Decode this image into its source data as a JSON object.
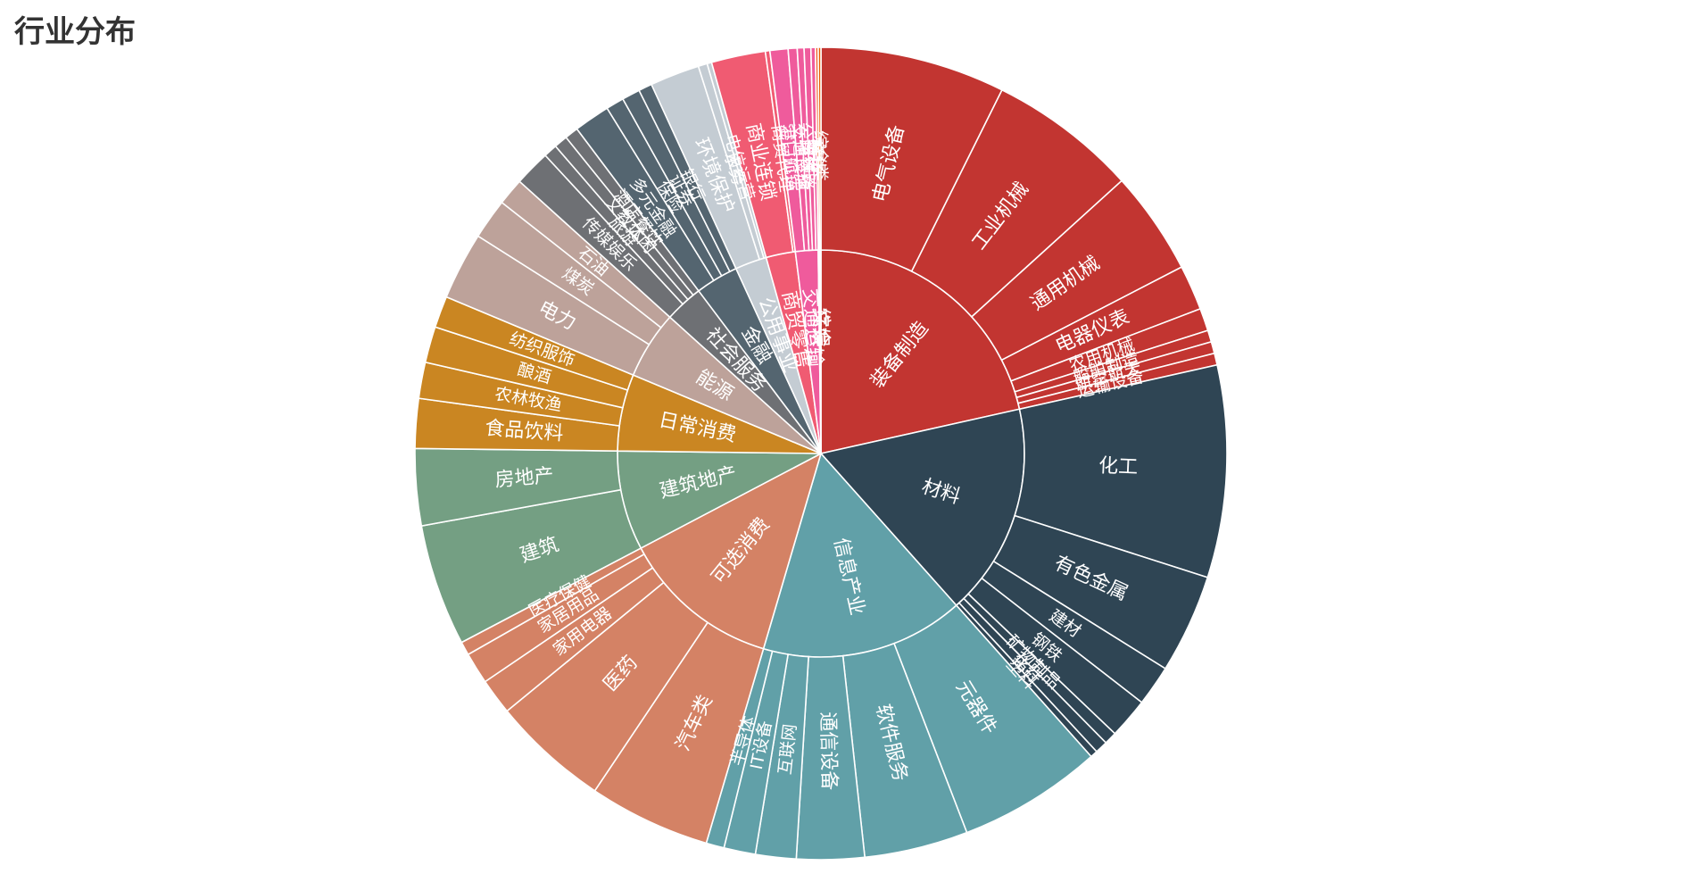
{
  "chart_data": {
    "type": "sunburst",
    "title": "行业分布",
    "start_angle_deg": 90,
    "direction": "clockwise",
    "sectors": [
      {
        "name": "装备制造",
        "color": "#c23531",
        "children": [
          {
            "name": "电气设备",
            "value": 41
          },
          {
            "name": "工业机械",
            "value": 33
          },
          {
            "name": "通用机械",
            "value": 23
          },
          {
            "name": "电器仪表",
            "value": 10
          },
          {
            "name": "农用机械",
            "value": 5
          },
          {
            "name": "船舶制造",
            "value": 2.6
          },
          {
            "name": "航空航天",
            "value": 2.6
          },
          {
            "name": "运输设备",
            "value": 2.6
          }
        ]
      },
      {
        "name": "材料",
        "color": "#2f4554",
        "children": [
          {
            "name": "化工",
            "value": 47
          },
          {
            "name": "有色金属",
            "value": 22
          },
          {
            "name": "建材",
            "value": 9
          },
          {
            "name": "钢铁",
            "value": 9
          },
          {
            "name": "矿物制品",
            "value": 2.8
          },
          {
            "name": "化纤",
            "value": 2.8
          },
          {
            "name": "塑料",
            "value": 1.6
          }
        ]
      },
      {
        "name": "信息产业",
        "color": "#61a0a8",
        "children": [
          {
            "name": "元器件",
            "value": 32
          },
          {
            "name": "软件服务",
            "value": 23
          },
          {
            "name": "通信设备",
            "value": 15
          },
          {
            "name": "互联网",
            "value": 9
          },
          {
            "name": "IT设备",
            "value": 7
          },
          {
            "name": "半导体",
            "value": 4
          }
        ]
      },
      {
        "name": "可选消费",
        "color": "#d48265",
        "children": [
          {
            "name": "汽车类",
            "value": 27
          },
          {
            "name": "医药",
            "value": 26
          },
          {
            "name": "家用电器",
            "value": 8
          },
          {
            "name": "家居用品",
            "value": 7
          },
          {
            "name": "医疗保健",
            "value": 3
          }
        ]
      },
      {
        "name": "建筑地产",
        "color": "#749f83",
        "children": [
          {
            "name": "建筑",
            "value": 27
          },
          {
            "name": "房地产",
            "value": 17
          }
        ]
      },
      {
        "name": "日常消费",
        "color": "#ca8622",
        "children": [
          {
            "name": "食品饮料",
            "value": 11
          },
          {
            "name": "农林牧渔",
            "value": 8
          },
          {
            "name": "酿酒",
            "value": 8
          },
          {
            "name": "纺织服饰",
            "value": 7
          }
        ]
      },
      {
        "name": "能源",
        "color": "#bda29a",
        "children": [
          {
            "name": "电力",
            "value": 15
          },
          {
            "name": "煤炭",
            "value": 9
          },
          {
            "name": "石油",
            "value": 6
          }
        ]
      },
      {
        "name": "社会服务",
        "color": "#6e7074",
        "children": [
          {
            "name": "传媒娱乐",
            "value": 8
          },
          {
            "name": "旅游",
            "value": 3
          },
          {
            "name": "文教休闲",
            "value": 3
          },
          {
            "name": "酒店餐饮",
            "value": 3
          }
        ]
      },
      {
        "name": "金融",
        "color": "#546570",
        "children": [
          {
            "name": "多元金融",
            "value": 8
          },
          {
            "name": "保险",
            "value": 4
          },
          {
            "name": "证券",
            "value": 4
          },
          {
            "name": "银行",
            "value": 3
          }
        ]
      },
      {
        "name": "公用事业",
        "color": "#c4ccd3",
        "children": [
          {
            "name": "环境保护",
            "value": 11
          },
          {
            "name": "水务",
            "value": 2
          },
          {
            "name": "电信运营",
            "value": 1
          }
        ]
      },
      {
        "name": "商贸零售",
        "color": "#f05b72",
        "children": [
          {
            "name": "商业连锁",
            "value": 12
          },
          {
            "name": "商贸代理",
            "value": 1
          }
        ]
      },
      {
        "name": "交通运输",
        "color": "#ef5b9c",
        "children": [
          {
            "name": "港口航运",
            "value": 4
          },
          {
            "name": "交通设施",
            "value": 2
          },
          {
            "name": "公路铁路",
            "value": 1.5
          },
          {
            "name": "物流",
            "value": 1.5
          },
          {
            "name": "空运",
            "value": 1
          }
        ]
      },
      {
        "name": "文娱",
        "color": "#f15b2a",
        "children": [
          {
            "name": "文化",
            "value": 0.6
          }
        ]
      },
      {
        "name": "综合",
        "color": "#e65c00",
        "children": [
          {
            "name": "综合类",
            "value": 0.6
          }
        ]
      }
    ]
  }
}
